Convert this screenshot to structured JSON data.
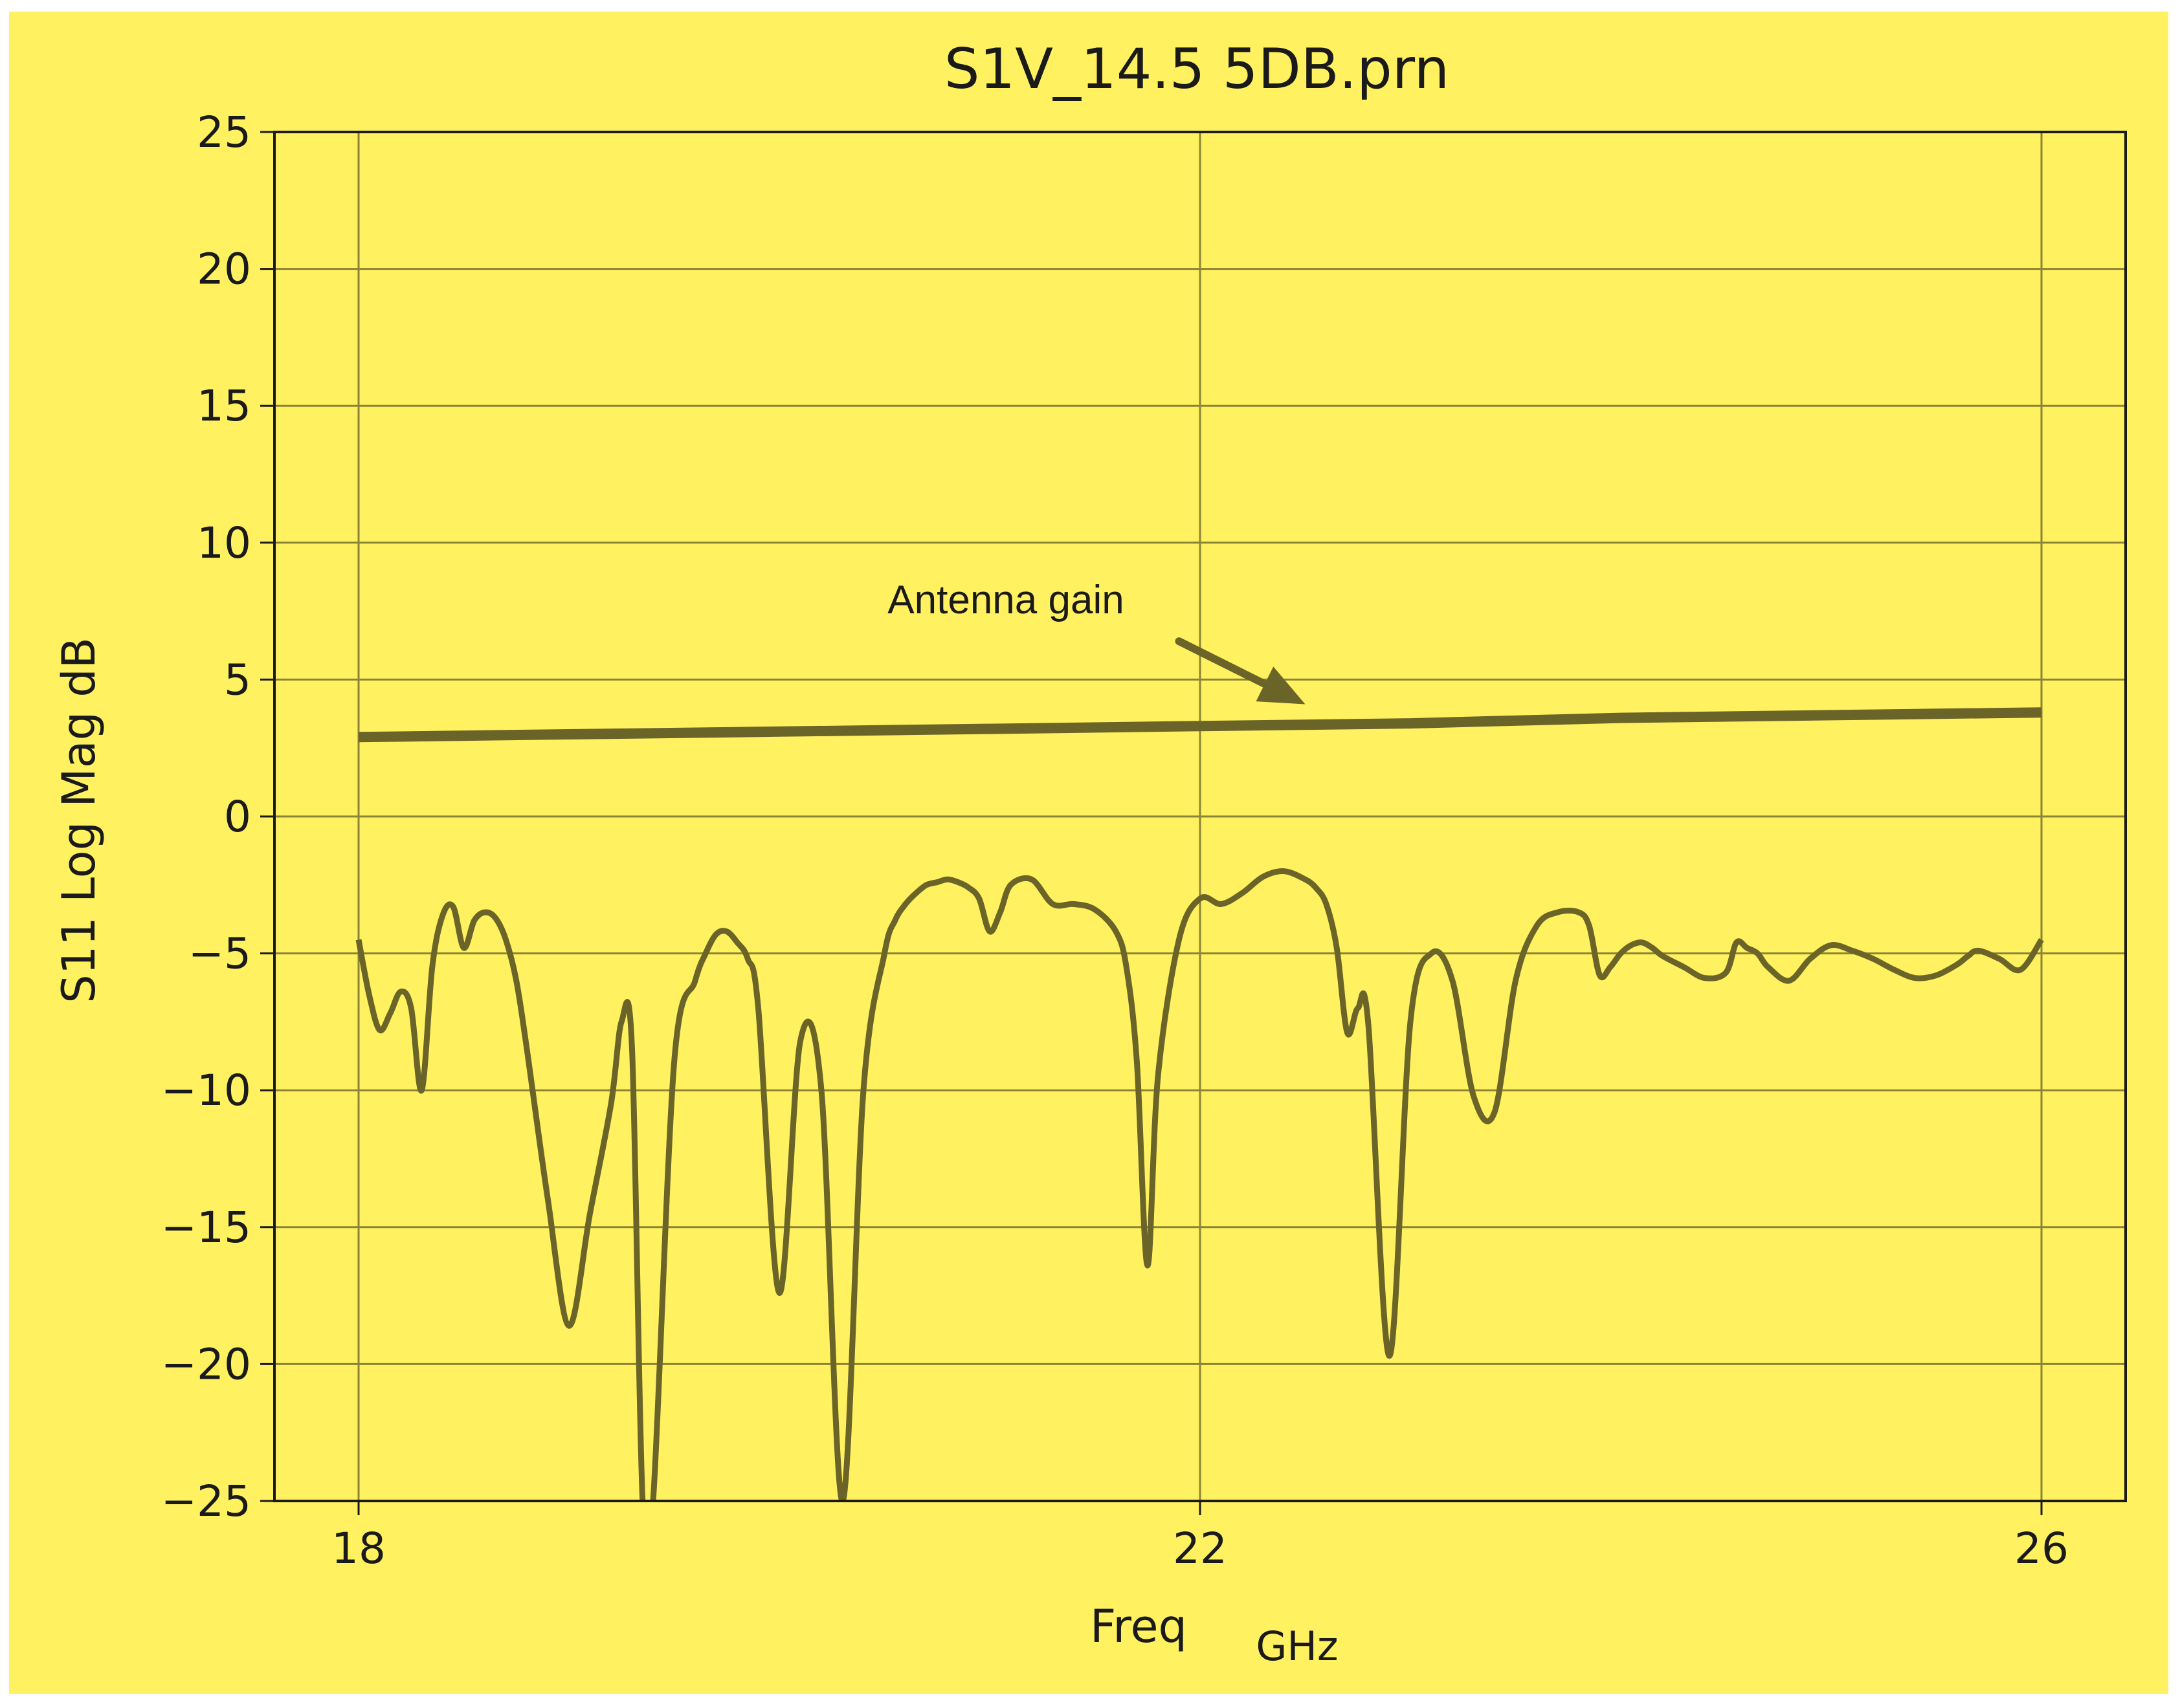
{
  "colors": {
    "background": "#fff15f",
    "grid": "#8a8436",
    "trace": "#6b6428",
    "axis": "#1a1a1a"
  },
  "chart_data": {
    "type": "line",
    "title": "S1V_14.5 5DB.prn",
    "xlabel": "Freq",
    "xunit": "GHz",
    "ylabel": "S11 Log Mag dB",
    "xlim": [
      17.6,
      26.4
    ],
    "ylim": [
      -25,
      25
    ],
    "xticks": [
      18,
      22,
      26
    ],
    "xtick_labels": [
      "18",
      "22",
      "26"
    ],
    "yticks": [
      25,
      20,
      15,
      10,
      5,
      0,
      -5,
      -10,
      -15,
      -20,
      -25
    ],
    "ytick_labels": [
      "25",
      "20",
      "15",
      "10",
      "5",
      "0",
      "−5",
      "−10",
      "−15",
      "−20",
      "−25"
    ],
    "grid": true,
    "annotation": {
      "text": "Antenna gain",
      "arrow_from": [
        21.9,
        6.4
      ],
      "arrow_to": [
        22.5,
        4.1
      ]
    },
    "series": [
      {
        "role": "gain",
        "x": [
          18.0,
          19.0,
          20.0,
          21.0,
          22.0,
          23.0,
          24.0,
          25.0,
          26.0
        ],
        "y": [
          2.9,
          3.0,
          3.1,
          3.2,
          3.3,
          3.4,
          3.6,
          3.7,
          3.8
        ]
      },
      {
        "role": "s11",
        "x": [
          18.0,
          18.05,
          18.1,
          18.15,
          18.2,
          18.25,
          18.3,
          18.35,
          18.4,
          18.45,
          18.5,
          18.55,
          18.6,
          18.65,
          18.7,
          18.75,
          18.8,
          18.9,
          19.0,
          19.1,
          19.2,
          19.25,
          19.3,
          19.35,
          19.4,
          19.5,
          19.6,
          19.65,
          19.7,
          19.75,
          19.8,
          19.85,
          19.9,
          20.0,
          20.1,
          20.2,
          20.3,
          20.4,
          20.5,
          20.55,
          20.6,
          20.65,
          20.7,
          20.75,
          20.8,
          20.85,
          20.9,
          20.95,
          21.0,
          21.05,
          21.1,
          21.2,
          21.3,
          21.4,
          21.5,
          21.6,
          21.65,
          21.7,
          21.75,
          21.8,
          21.9,
          22.0,
          22.1,
          22.2,
          22.3,
          22.4,
          22.5,
          22.55,
          22.6,
          22.65,
          22.7,
          22.75,
          22.8,
          22.9,
          23.0,
          23.1,
          23.2,
          23.3,
          23.4,
          23.5,
          23.6,
          23.7,
          23.8,
          23.85,
          23.9,
          23.95,
          24.0,
          24.05,
          24.1,
          24.15,
          24.2,
          24.3,
          24.4,
          24.5,
          24.55,
          24.6,
          24.65,
          24.7,
          24.8,
          24.9,
          25.0,
          25.1,
          25.2,
          25.3,
          25.4,
          25.5,
          25.6,
          25.65,
          25.7,
          25.8,
          25.9,
          26.0
        ],
        "y": [
          -4.5,
          -6.5,
          -7.8,
          -7.2,
          -6.4,
          -7.0,
          -10.0,
          -5.5,
          -3.6,
          -3.3,
          -4.8,
          -3.8,
          -3.5,
          -3.7,
          -4.5,
          -6.0,
          -8.5,
          -14.0,
          -18.6,
          -14.5,
          -10.5,
          -7.5,
          -8.5,
          -25.0,
          -25.0,
          -9.0,
          -6.0,
          -5.0,
          -4.3,
          -4.2,
          -4.6,
          -5.2,
          -7.0,
          -17.4,
          -8.2,
          -10.0,
          -25.0,
          -10.0,
          -5.0,
          -3.8,
          -3.2,
          -2.8,
          -2.5,
          -2.4,
          -2.3,
          -2.4,
          -2.6,
          -3.0,
          -4.2,
          -3.5,
          -2.5,
          -2.3,
          -3.2,
          -3.2,
          -3.4,
          -4.2,
          -5.5,
          -9.0,
          -16.4,
          -9.5,
          -4.5,
          -3.0,
          -3.2,
          -2.8,
          -2.2,
          -2.0,
          -2.3,
          -2.6,
          -3.2,
          -4.8,
          -7.9,
          -7.0,
          -7.6,
          -19.7,
          -7.5,
          -5.0,
          -6.0,
          -10.2,
          -10.8,
          -6.0,
          -4.0,
          -3.5,
          -3.5,
          -4.0,
          -5.8,
          -5.5,
          -5.0,
          -4.7,
          -4.6,
          -4.8,
          -5.1,
          -5.5,
          -5.9,
          -5.7,
          -4.6,
          -4.8,
          -5.0,
          -5.5,
          -6.0,
          -5.2,
          -4.7,
          -4.9,
          -5.2,
          -5.6,
          -5.9,
          -5.8,
          -5.4,
          -5.1,
          -4.9,
          -5.2,
          -5.6,
          -4.5
        ]
      }
    ]
  }
}
